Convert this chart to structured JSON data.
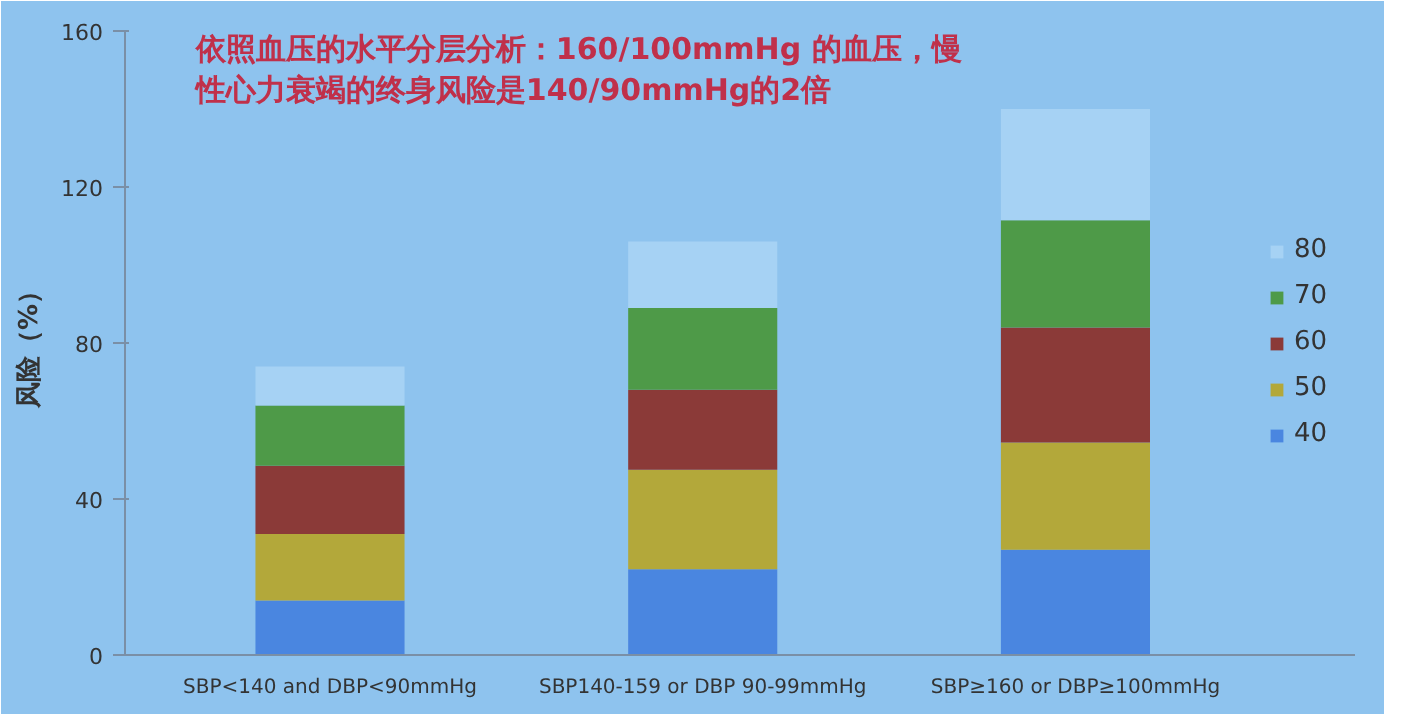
{
  "chart_data": {
    "type": "bar",
    "stacked": true,
    "title": "依照血压的水平分层分析：160/100mmHg 的血压，慢性心力衰竭的终身风险是140/90mmHg的2倍",
    "ylabel": "风险（%）",
    "categories": [
      "SBP<140 and DBP<90mmHg",
      "SBP140-159 or DBP 90-99mmHg",
      "SBP≥160 or DBP≥100mmHg"
    ],
    "series": [
      {
        "name": "40",
        "color": "#4a86e0",
        "values": [
          14,
          22,
          27
        ]
      },
      {
        "name": "50",
        "color": "#b3a83a",
        "values": [
          17,
          25.5,
          27.5
        ]
      },
      {
        "name": "60",
        "color": "#8b3a38",
        "values": [
          17.5,
          20.5,
          29.5
        ]
      },
      {
        "name": "70",
        "color": "#4e9a48",
        "values": [
          15.5,
          21,
          27.5
        ]
      },
      {
        "name": "80",
        "color": "#a6d2f4",
        "values": [
          10,
          17,
          28.5
        ]
      }
    ],
    "ylim": [
      0,
      160
    ],
    "yticks": [
      0,
      40,
      80,
      120,
      160
    ],
    "grid": false,
    "legend": "right"
  }
}
